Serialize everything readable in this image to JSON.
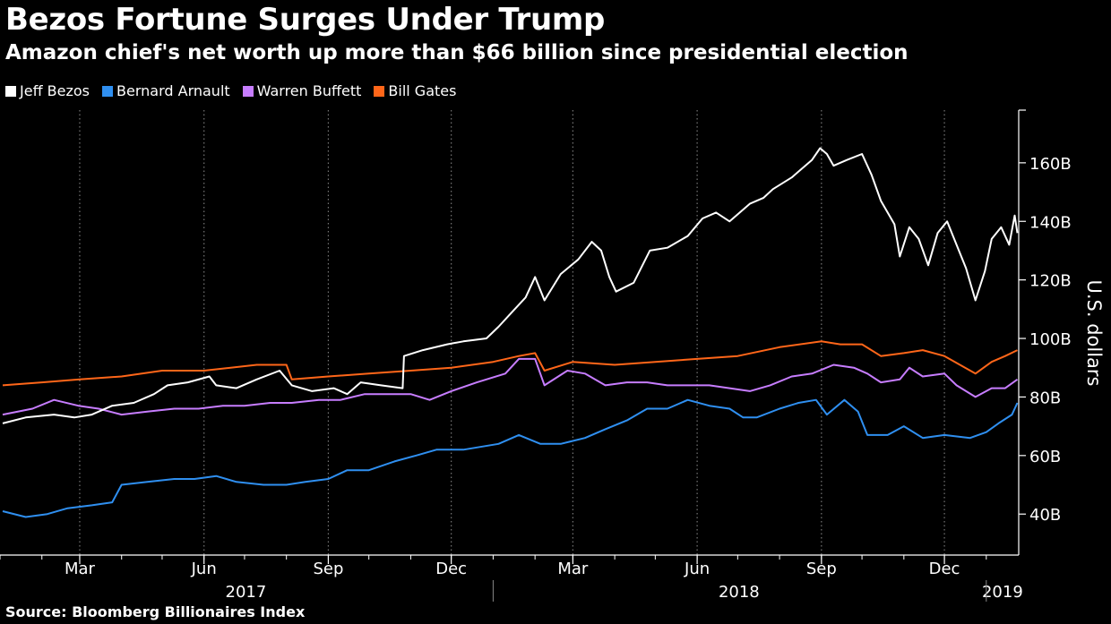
{
  "header": {
    "title": "Bezos Fortune Surges Under Trump",
    "subtitle": "Amazon chief's net worth up more than $66 billion since presidential election"
  },
  "footer": {
    "source": "Source: Bloomberg Billionaires Index"
  },
  "colors": {
    "background": "#000000",
    "Jeff Bezos": "#ffffff",
    "Bernard Arnault": "#2f8ff0",
    "Warren Buffett": "#c77dff",
    "Bill Gates": "#ff6619"
  },
  "chart_data": {
    "type": "line",
    "title": "Bezos Fortune Surges Under Trump",
    "subtitle": "Amazon chief's net worth up more than $66 billion since presidential election",
    "ylabel": "U.S. dollars",
    "ylim": [
      26,
      178
    ],
    "y_ticks": [
      40,
      60,
      80,
      100,
      120,
      140,
      160
    ],
    "y_tick_labels": [
      "40B",
      "60B",
      "80B",
      "100B",
      "120B",
      "140B",
      "160B"
    ],
    "y_axis_side": "right",
    "xlim": [
      "2017-01-01",
      "2019-01-25"
    ],
    "x_ticks": [
      {
        "date": "2017-03-01",
        "label": "Mar"
      },
      {
        "date": "2017-06-01",
        "label": "Jun"
      },
      {
        "date": "2017-09-01",
        "label": "Sep"
      },
      {
        "date": "2017-12-01",
        "label": "Dec"
      },
      {
        "date": "2018-03-01",
        "label": "Mar"
      },
      {
        "date": "2018-06-01",
        "label": "Jun"
      },
      {
        "date": "2018-09-01",
        "label": "Sep"
      },
      {
        "date": "2018-12-01",
        "label": "Dec"
      }
    ],
    "years": [
      {
        "label": "2017",
        "start": "2017-01-01",
        "end": "2017-12-31"
      },
      {
        "label": "2018",
        "start": "2018-01-01",
        "end": "2018-12-31"
      },
      {
        "label": "2019",
        "start": "2019-01-01",
        "end": "2019-01-25"
      }
    ],
    "grid": "vertical dotted",
    "legend": "top-left",
    "series": [
      {
        "name": "Jeff Bezos",
        "points": [
          [
            "2017-01-03",
            71
          ],
          [
            "2017-01-20",
            73
          ],
          [
            "2017-02-10",
            74
          ],
          [
            "2017-02-25",
            73
          ],
          [
            "2017-03-10",
            74
          ],
          [
            "2017-03-25",
            77
          ],
          [
            "2017-04-10",
            78
          ],
          [
            "2017-04-25",
            81
          ],
          [
            "2017-05-05",
            84
          ],
          [
            "2017-05-20",
            85
          ],
          [
            "2017-06-05",
            87
          ],
          [
            "2017-06-10",
            84
          ],
          [
            "2017-06-25",
            83
          ],
          [
            "2017-07-10",
            86
          ],
          [
            "2017-07-27",
            89
          ],
          [
            "2017-08-05",
            84
          ],
          [
            "2017-08-20",
            82
          ],
          [
            "2017-09-05",
            83
          ],
          [
            "2017-09-15",
            81
          ],
          [
            "2017-09-25",
            85
          ],
          [
            "2017-10-10",
            84
          ],
          [
            "2017-10-26",
            83
          ],
          [
            "2017-10-27",
            94
          ],
          [
            "2017-11-10",
            96
          ],
          [
            "2017-11-28",
            98
          ],
          [
            "2017-12-10",
            99
          ],
          [
            "2017-12-27",
            100
          ],
          [
            "2018-01-05",
            104
          ],
          [
            "2018-01-15",
            109
          ],
          [
            "2018-01-25",
            114
          ],
          [
            "2018-02-01",
            121
          ],
          [
            "2018-02-08",
            113
          ],
          [
            "2018-02-20",
            122
          ],
          [
            "2018-03-05",
            127
          ],
          [
            "2018-03-15",
            133
          ],
          [
            "2018-03-22",
            130
          ],
          [
            "2018-03-28",
            121
          ],
          [
            "2018-04-02",
            116
          ],
          [
            "2018-04-15",
            119
          ],
          [
            "2018-04-27",
            130
          ],
          [
            "2018-05-10",
            131
          ],
          [
            "2018-05-25",
            135
          ],
          [
            "2018-06-05",
            141
          ],
          [
            "2018-06-15",
            143
          ],
          [
            "2018-06-25",
            140
          ],
          [
            "2018-07-10",
            146
          ],
          [
            "2018-07-20",
            148
          ],
          [
            "2018-07-27",
            151
          ],
          [
            "2018-08-10",
            155
          ],
          [
            "2018-08-25",
            161
          ],
          [
            "2018-08-31",
            165
          ],
          [
            "2018-09-05",
            163
          ],
          [
            "2018-09-10",
            159
          ],
          [
            "2018-09-20",
            161
          ],
          [
            "2018-10-01",
            163
          ],
          [
            "2018-10-08",
            156
          ],
          [
            "2018-10-15",
            147
          ],
          [
            "2018-10-25",
            139
          ],
          [
            "2018-10-29",
            128
          ],
          [
            "2018-11-05",
            138
          ],
          [
            "2018-11-12",
            134
          ],
          [
            "2018-11-19",
            125
          ],
          [
            "2018-11-26",
            136
          ],
          [
            "2018-12-03",
            140
          ],
          [
            "2018-12-10",
            132
          ],
          [
            "2018-12-17",
            124
          ],
          [
            "2018-12-24",
            113
          ],
          [
            "2018-12-31",
            123
          ],
          [
            "2019-01-05",
            134
          ],
          [
            "2019-01-12",
            138
          ],
          [
            "2019-01-18",
            132
          ],
          [
            "2019-01-22",
            142
          ],
          [
            "2019-01-24",
            136
          ]
        ]
      },
      {
        "name": "Bernard Arnault",
        "points": [
          [
            "2017-01-03",
            41
          ],
          [
            "2017-01-20",
            39
          ],
          [
            "2017-02-05",
            40
          ],
          [
            "2017-02-20",
            42
          ],
          [
            "2017-03-10",
            43
          ],
          [
            "2017-03-25",
            44
          ],
          [
            "2017-04-01",
            50
          ],
          [
            "2017-04-20",
            51
          ],
          [
            "2017-05-10",
            52
          ],
          [
            "2017-05-25",
            52
          ],
          [
            "2017-06-10",
            53
          ],
          [
            "2017-06-25",
            51
          ],
          [
            "2017-07-15",
            50
          ],
          [
            "2017-08-01",
            50
          ],
          [
            "2017-08-15",
            51
          ],
          [
            "2017-09-01",
            52
          ],
          [
            "2017-09-15",
            55
          ],
          [
            "2017-10-01",
            55
          ],
          [
            "2017-10-20",
            58
          ],
          [
            "2017-11-05",
            60
          ],
          [
            "2017-11-20",
            62
          ],
          [
            "2017-12-10",
            62
          ],
          [
            "2018-01-05",
            64
          ],
          [
            "2018-01-20",
            67
          ],
          [
            "2018-02-05",
            64
          ],
          [
            "2018-02-20",
            64
          ],
          [
            "2018-03-10",
            66
          ],
          [
            "2018-03-25",
            69
          ],
          [
            "2018-04-10",
            72
          ],
          [
            "2018-04-25",
            76
          ],
          [
            "2018-05-10",
            76
          ],
          [
            "2018-05-25",
            79
          ],
          [
            "2018-06-10",
            77
          ],
          [
            "2018-06-25",
            76
          ],
          [
            "2018-07-05",
            73
          ],
          [
            "2018-07-15",
            73
          ],
          [
            "2018-08-01",
            76
          ],
          [
            "2018-08-15",
            78
          ],
          [
            "2018-08-28",
            79
          ],
          [
            "2018-09-05",
            74
          ],
          [
            "2018-09-18",
            79
          ],
          [
            "2018-09-28",
            75
          ],
          [
            "2018-10-05",
            67
          ],
          [
            "2018-10-20",
            67
          ],
          [
            "2018-11-01",
            70
          ],
          [
            "2018-11-15",
            66
          ],
          [
            "2018-12-01",
            67
          ],
          [
            "2018-12-20",
            66
          ],
          [
            "2019-01-01",
            68
          ],
          [
            "2019-01-10",
            71
          ],
          [
            "2019-01-20",
            74
          ],
          [
            "2019-01-24",
            78
          ]
        ]
      },
      {
        "name": "Warren Buffett",
        "points": [
          [
            "2017-01-03",
            74
          ],
          [
            "2017-01-25",
            76
          ],
          [
            "2017-02-10",
            79
          ],
          [
            "2017-02-28",
            77
          ],
          [
            "2017-03-15",
            76
          ],
          [
            "2017-04-01",
            74
          ],
          [
            "2017-04-20",
            75
          ],
          [
            "2017-05-10",
            76
          ],
          [
            "2017-05-28",
            76
          ],
          [
            "2017-06-15",
            77
          ],
          [
            "2017-07-01",
            77
          ],
          [
            "2017-07-20",
            78
          ],
          [
            "2017-08-05",
            78
          ],
          [
            "2017-08-25",
            79
          ],
          [
            "2017-09-10",
            79
          ],
          [
            "2017-09-28",
            81
          ],
          [
            "2017-10-15",
            81
          ],
          [
            "2017-11-01",
            81
          ],
          [
            "2017-11-15",
            79
          ],
          [
            "2017-12-01",
            82
          ],
          [
            "2017-12-20",
            85
          ],
          [
            "2018-01-10",
            88
          ],
          [
            "2018-01-20",
            93
          ],
          [
            "2018-02-01",
            93
          ],
          [
            "2018-02-08",
            84
          ],
          [
            "2018-02-25",
            89
          ],
          [
            "2018-03-10",
            88
          ],
          [
            "2018-03-25",
            84
          ],
          [
            "2018-04-10",
            85
          ],
          [
            "2018-04-25",
            85
          ],
          [
            "2018-05-10",
            84
          ],
          [
            "2018-05-25",
            84
          ],
          [
            "2018-06-10",
            84
          ],
          [
            "2018-06-25",
            83
          ],
          [
            "2018-07-10",
            82
          ],
          [
            "2018-07-25",
            84
          ],
          [
            "2018-08-10",
            87
          ],
          [
            "2018-08-25",
            88
          ],
          [
            "2018-09-10",
            91
          ],
          [
            "2018-09-25",
            90
          ],
          [
            "2018-10-05",
            88
          ],
          [
            "2018-10-15",
            85
          ],
          [
            "2018-10-29",
            86
          ],
          [
            "2018-11-05",
            90
          ],
          [
            "2018-11-15",
            87
          ],
          [
            "2018-12-01",
            88
          ],
          [
            "2018-12-10",
            84
          ],
          [
            "2018-12-24",
            80
          ],
          [
            "2019-01-05",
            83
          ],
          [
            "2019-01-15",
            83
          ],
          [
            "2019-01-24",
            86
          ]
        ]
      },
      {
        "name": "Bill Gates",
        "points": [
          [
            "2017-01-03",
            84
          ],
          [
            "2017-02-01",
            85
          ],
          [
            "2017-03-01",
            86
          ],
          [
            "2017-04-01",
            87
          ],
          [
            "2017-05-01",
            89
          ],
          [
            "2017-06-01",
            89
          ],
          [
            "2017-07-10",
            91
          ],
          [
            "2017-08-01",
            91
          ],
          [
            "2017-08-05",
            86
          ],
          [
            "2017-09-01",
            87
          ],
          [
            "2017-10-01",
            88
          ],
          [
            "2017-11-01",
            89
          ],
          [
            "2017-12-01",
            90
          ],
          [
            "2018-01-01",
            92
          ],
          [
            "2018-01-20",
            94
          ],
          [
            "2018-02-01",
            95
          ],
          [
            "2018-02-08",
            89
          ],
          [
            "2018-03-01",
            92
          ],
          [
            "2018-04-01",
            91
          ],
          [
            "2018-05-01",
            92
          ],
          [
            "2018-06-01",
            93
          ],
          [
            "2018-07-01",
            94
          ],
          [
            "2018-08-01",
            97
          ],
          [
            "2018-09-01",
            99
          ],
          [
            "2018-09-15",
            98
          ],
          [
            "2018-10-01",
            98
          ],
          [
            "2018-10-15",
            94
          ],
          [
            "2018-11-01",
            95
          ],
          [
            "2018-11-15",
            96
          ],
          [
            "2018-12-01",
            94
          ],
          [
            "2018-12-24",
            88
          ],
          [
            "2019-01-05",
            92
          ],
          [
            "2019-01-15",
            94
          ],
          [
            "2019-01-24",
            96
          ]
        ]
      }
    ]
  }
}
